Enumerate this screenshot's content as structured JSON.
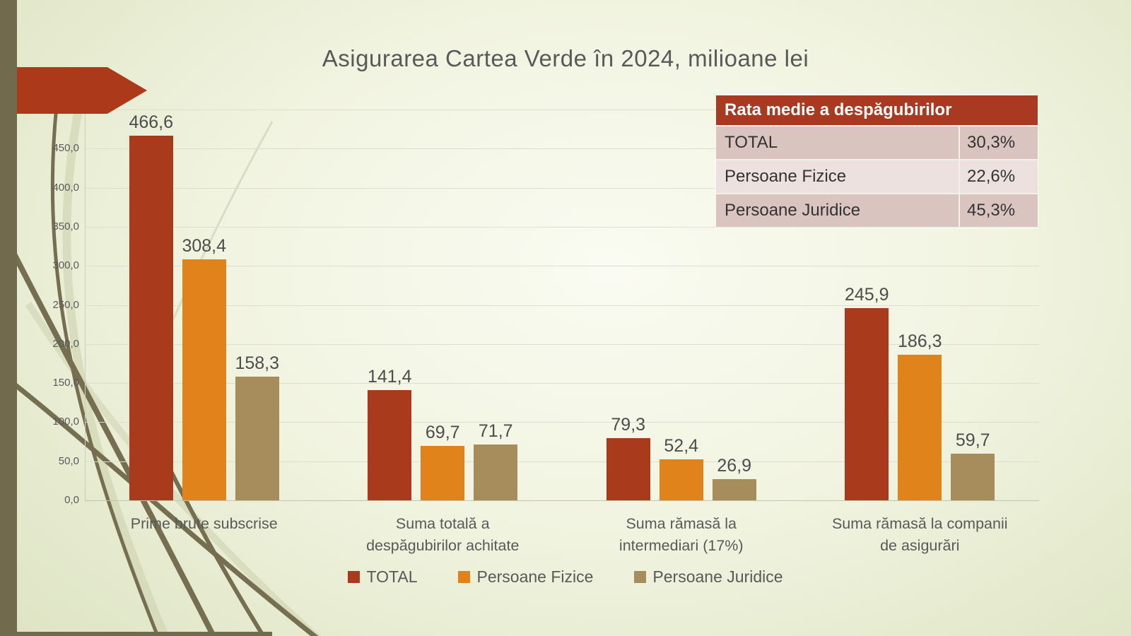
{
  "slide": {
    "title": "Asigurarea Cartea Verde în 2024, milioane lei"
  },
  "chart_data": {
    "type": "bar",
    "title": "Asigurarea Cartea Verde în 2024, milioane lei",
    "unit": "milioane lei",
    "categories": [
      "Prime brute subscrise",
      "Suma totală a despăgubirilor achitate",
      "Suma rămasă la intermediari  (17%)",
      "Suma rămasă la companii de asigurări"
    ],
    "categories_wrapped": [
      "Prime brute subscrise",
      "Suma totală a\ndespăgubirilor achitate",
      "Suma rămasă la\nintermediari  (17%)",
      "Suma rămasă la companii\nde asigurări"
    ],
    "series": [
      {
        "name": "TOTAL",
        "color": "#A93A1C",
        "values": [
          466.6,
          141.4,
          79.3,
          245.9
        ]
      },
      {
        "name": "Persoane Fizice",
        "color": "#E0831A",
        "values": [
          308.4,
          69.7,
          52.4,
          186.3
        ]
      },
      {
        "name": "Persoane Juridice",
        "color": "#A78C5C",
        "values": [
          158.3,
          71.7,
          26.9,
          59.7
        ]
      }
    ],
    "ylim": [
      0,
      500
    ],
    "ytick_step": 50,
    "grid": true,
    "legend_position": "bottom",
    "value_labels": true,
    "decimal_separator": ","
  },
  "table": {
    "header": "Rata medie a despăgubirilor",
    "rows": [
      {
        "label": "TOTAL",
        "value": "30,3%"
      },
      {
        "label": "Persoane Fizice",
        "value": "22,6%"
      },
      {
        "label": "Persoane Juridice",
        "value": "45,3%"
      }
    ]
  },
  "colors": {
    "accent_red": "#A93A1C",
    "accent_orange": "#E0831A",
    "accent_tan": "#A78C5C",
    "sidebar_olive": "#716A4C",
    "table_header_bg": "#A93920",
    "table_row_dark": "#D9C4C0",
    "table_row_light": "#ECE1DF",
    "text_gray": "#595959"
  }
}
